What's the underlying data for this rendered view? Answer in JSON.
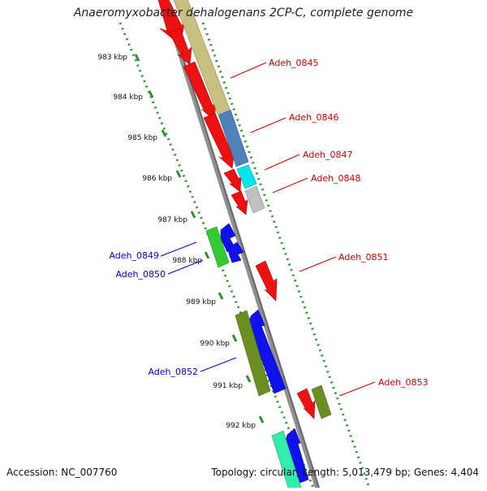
{
  "title": "Anaeromyxobacter dehalogenans 2CP-C, complete genome",
  "footer": {
    "accession": "Accession: NC_007760",
    "topology": "Topology: circular; Length: 5,013,479 bp; Genes: 4,404"
  },
  "scale": {
    "tick_labels": [
      "983 kbp",
      "984 kbp",
      "985 kbp",
      "986 kbp",
      "987 kbp",
      "988 kbp",
      "989 kbp",
      "990 kbp",
      "991 kbp",
      "992 kbp"
    ]
  },
  "colors": {
    "backbone": "#909090",
    "dots_inner": "#2f8f2f",
    "dots_outer": "#2f8f2f",
    "label_forward": "#cc0000",
    "label_reverse": "#0000cc",
    "orf_red": "#ee1111",
    "orf_blue": "#1111ee",
    "cog_khaki": "#c8c080",
    "cog_steelblue": "#4f82b8",
    "cog_cyan": "#00e5ee",
    "cog_gray": "#c0c0c0",
    "cog_green": "#33cc33",
    "cog_olive": "#6b8e23",
    "cog_mint": "#33eeaa"
  },
  "gene_labels": [
    {
      "text": "Adeh_0845",
      "strand": "forward"
    },
    {
      "text": "Adeh_0846",
      "strand": "forward"
    },
    {
      "text": "Adeh_0847",
      "strand": "forward"
    },
    {
      "text": "Adeh_0848",
      "strand": "forward"
    },
    {
      "text": "Adeh_0849",
      "strand": "reverse"
    },
    {
      "text": "Adeh_0850",
      "strand": "reverse"
    },
    {
      "text": "Adeh_0851",
      "strand": "forward"
    },
    {
      "text": "Adeh_0852",
      "strand": "reverse"
    },
    {
      "text": "Adeh_0853",
      "strand": "forward"
    }
  ]
}
